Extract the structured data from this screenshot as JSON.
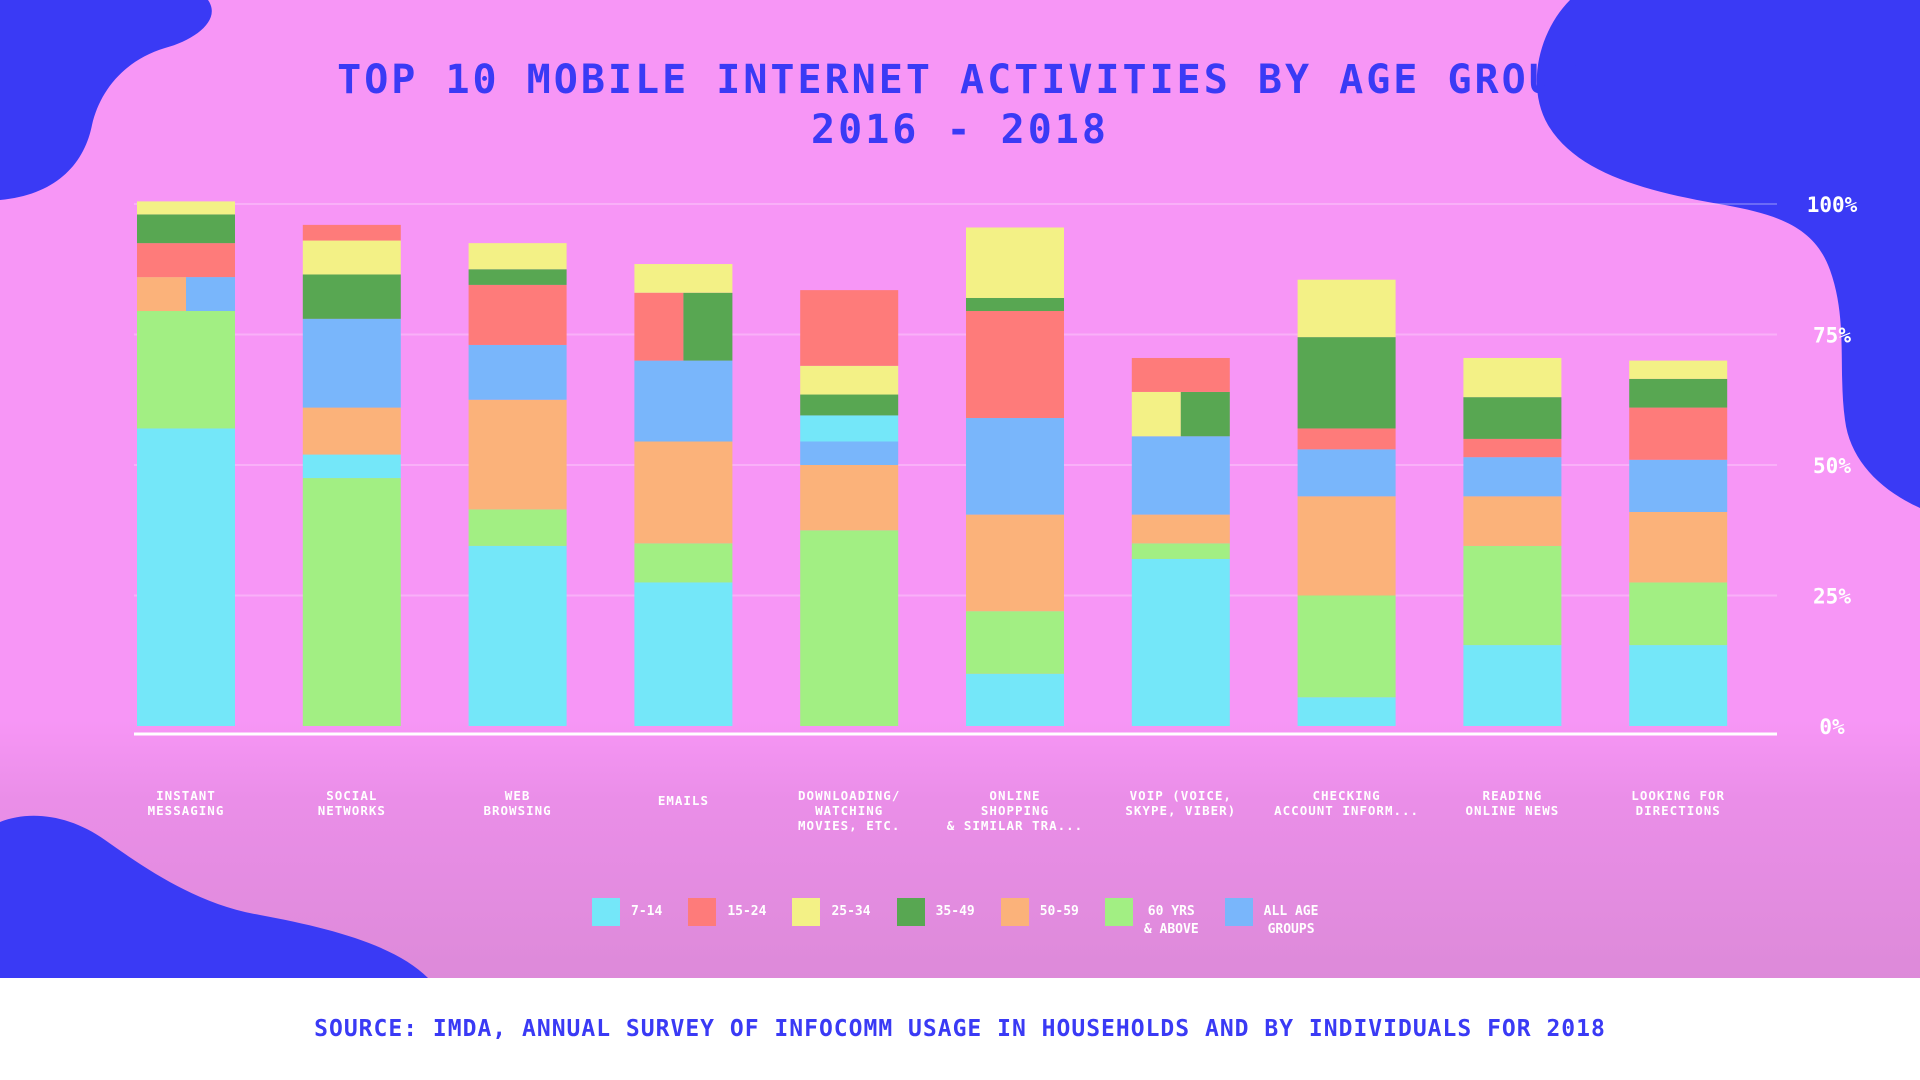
{
  "title_line1": "TOP 10 MOBILE INTERNET ACTIVITIES BY AGE GROUP",
  "title_line2": "2016 - 2018",
  "source": "SOURCE:  IMDA, ANNUAL SURVEY OF INFOCOMM USAGE IN HOUSEHOLDS AND BY INDIVIDUALS FOR 2018",
  "colors": {
    "background": "#f796f6",
    "blob": "#3a3af5",
    "title": "#3a3af5",
    "gridline": "#ffffff"
  },
  "chart_data": {
    "type": "bar",
    "stacked": true,
    "title": "TOP 10 MOBILE INTERNET ACTIVITIES BY AGE GROUP 2016 - 2018",
    "xlabel": "",
    "ylabel": "",
    "ylim": [
      0,
      100
    ],
    "y_ticks": [
      {
        "value": 0,
        "label": "0%"
      },
      {
        "value": 25,
        "label": "25%"
      },
      {
        "value": 50,
        "label": "50%"
      },
      {
        "value": 75,
        "label": "75%"
      },
      {
        "value": 100,
        "label": "100%"
      }
    ],
    "grid": true,
    "legend_position": "bottom",
    "categories": [
      [
        "INSTANT",
        "MESSAGING"
      ],
      [
        "SOCIAL",
        "NETWORKS"
      ],
      [
        "WEB",
        "BROWSING"
      ],
      [
        "EMAILS"
      ],
      [
        "DOWNLOADING/",
        "WATCHING",
        "MOVIES, ETC."
      ],
      [
        "ONLINE",
        "SHOPPING",
        "& SIMILAR TRA..."
      ],
      [
        "VOIP (VOICE,",
        "SKYPE, VIBER)"
      ],
      [
        "CHECKING",
        "ACCOUNT INFORM..."
      ],
      [
        "READING",
        "ONLINE NEWS"
      ],
      [
        "LOOKING FOR",
        "DIRECTIONS"
      ]
    ],
    "series": [
      {
        "key": "7-14",
        "name": "7-14",
        "color": "#74e7f9"
      },
      {
        "key": "15-24",
        "name": "15-24",
        "color": "#fe7b7a"
      },
      {
        "key": "25-34",
        "name": "25-34",
        "color": "#f3f186"
      },
      {
        "key": "35-49",
        "name": "35-49",
        "color": "#58a752"
      },
      {
        "key": "50-59",
        "name": "50-59",
        "color": "#fbb27a"
      },
      {
        "key": "60+",
        "name": "60 YRS\n& ABOVE",
        "color": "#a2ef83"
      },
      {
        "key": "all",
        "name": "ALL AGE\nGROUPS",
        "color": "#79b6fb"
      }
    ],
    "stacks": [
      [
        {
          "series": "7-14",
          "value": 57
        },
        {
          "series": "60+",
          "value": 22.5
        },
        {
          "series": "50-59",
          "value": 6.5,
          "split": "left"
        },
        {
          "series": "all",
          "value": 6.5,
          "split": "right"
        },
        {
          "series": "15-24",
          "value": 6.5
        },
        {
          "series": "35-49",
          "value": 5.5
        },
        {
          "series": "25-34",
          "value": 2.5
        }
      ],
      [
        {
          "series": "60+",
          "value": 47.5
        },
        {
          "series": "7-14",
          "value": 4.5
        },
        {
          "series": "50-59",
          "value": 9
        },
        {
          "series": "all",
          "value": 17
        },
        {
          "series": "35-49",
          "value": 8.5
        },
        {
          "series": "25-34",
          "value": 6.5
        },
        {
          "series": "15-24",
          "value": 3
        }
      ],
      [
        {
          "series": "7-14",
          "value": 34.5
        },
        {
          "series": "60+",
          "value": 7
        },
        {
          "series": "50-59",
          "value": 21
        },
        {
          "series": "all",
          "value": 10.5
        },
        {
          "series": "15-24",
          "value": 11.5
        },
        {
          "series": "35-49",
          "value": 3
        },
        {
          "series": "25-34",
          "value": 5
        }
      ],
      [
        {
          "series": "7-14",
          "value": 27.5
        },
        {
          "series": "60+",
          "value": 7.5
        },
        {
          "series": "50-59",
          "value": 19.5
        },
        {
          "series": "all",
          "value": 15.5
        },
        {
          "series": "15-24",
          "value": 13,
          "split": "left"
        },
        {
          "series": "35-49",
          "value": 13,
          "split": "right"
        },
        {
          "series": "25-34",
          "value": 5.5
        }
      ],
      [
        {
          "series": "60+",
          "value": 37.5
        },
        {
          "series": "50-59",
          "value": 12.5
        },
        {
          "series": "all",
          "value": 4.5
        },
        {
          "series": "7-14",
          "value": 5
        },
        {
          "series": "35-49",
          "value": 4
        },
        {
          "series": "25-34",
          "value": 5.5
        },
        {
          "series": "15-24",
          "value": 14.5
        }
      ],
      [
        {
          "series": "7-14",
          "value": 10
        },
        {
          "series": "60+",
          "value": 12
        },
        {
          "series": "50-59",
          "value": 18.5
        },
        {
          "series": "all",
          "value": 18.5
        },
        {
          "series": "15-24",
          "value": 20.5
        },
        {
          "series": "35-49",
          "value": 2.5
        },
        {
          "series": "25-34",
          "value": 13.5
        }
      ],
      [
        {
          "series": "7-14",
          "value": 32
        },
        {
          "series": "60+",
          "value": 3
        },
        {
          "series": "50-59",
          "value": 5.5
        },
        {
          "series": "all",
          "value": 15
        },
        {
          "series": "25-34",
          "value": 8.5,
          "split": "left"
        },
        {
          "series": "35-49",
          "value": 8.5,
          "split": "right"
        },
        {
          "series": "15-24",
          "value": 6.5
        }
      ],
      [
        {
          "series": "7-14",
          "value": 5.5
        },
        {
          "series": "60+",
          "value": 19.5
        },
        {
          "series": "50-59",
          "value": 19
        },
        {
          "series": "all",
          "value": 9
        },
        {
          "series": "15-24",
          "value": 4
        },
        {
          "series": "35-49",
          "value": 17.5
        },
        {
          "series": "25-34",
          "value": 11
        }
      ],
      [
        {
          "series": "7-14",
          "value": 15.5
        },
        {
          "series": "60+",
          "value": 19
        },
        {
          "series": "50-59",
          "value": 9.5
        },
        {
          "series": "all",
          "value": 7.5
        },
        {
          "series": "15-24",
          "value": 3.5
        },
        {
          "series": "35-49",
          "value": 8
        },
        {
          "series": "25-34",
          "value": 7.5
        }
      ],
      [
        {
          "series": "7-14",
          "value": 15.5
        },
        {
          "series": "60+",
          "value": 12
        },
        {
          "series": "50-59",
          "value": 13.5
        },
        {
          "series": "all",
          "value": 10
        },
        {
          "series": "15-24",
          "value": 10
        },
        {
          "series": "35-49",
          "value": 5.5
        },
        {
          "series": "25-34",
          "value": 3.5
        }
      ]
    ]
  }
}
